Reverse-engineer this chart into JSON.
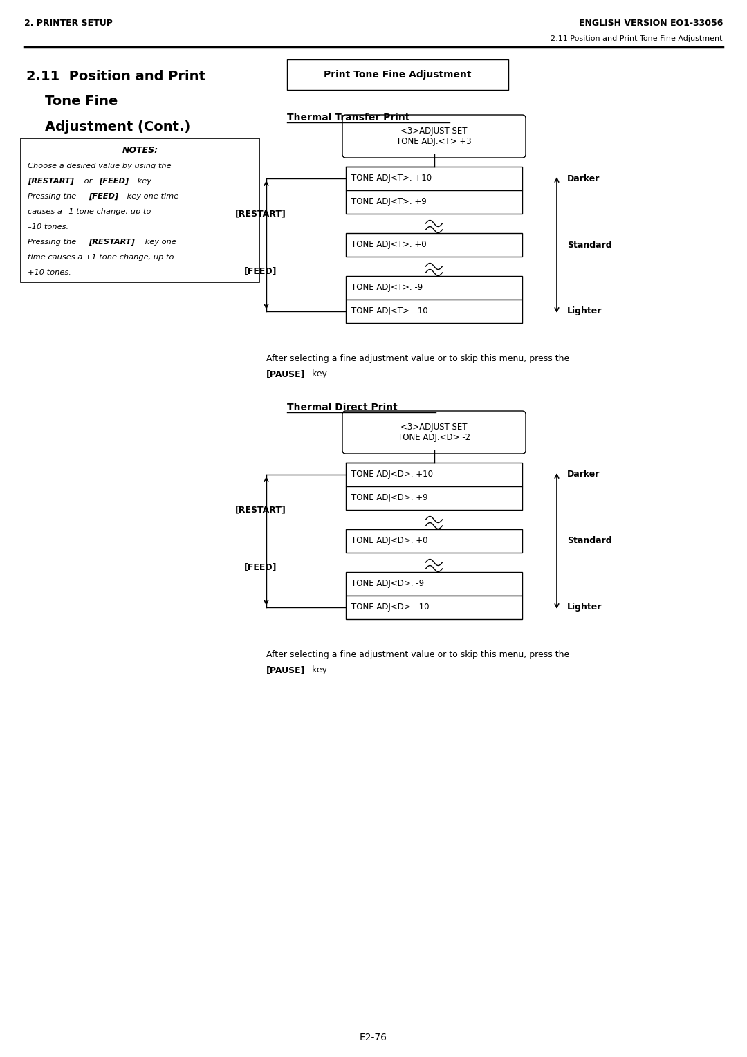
{
  "page_header_left": "2. PRINTER SETUP",
  "page_header_right": "ENGLISH VERSION EO1-33056",
  "page_subheader": "2.11 Position and Print Tone Fine Adjustment",
  "section_title_line1": "2.11  Position and Print",
  "section_title_line2": "Tone Fine",
  "section_title_line3": "Adjustment (Cont.)",
  "box_title": "Print Tone Fine Adjustment",
  "thermal_transfer_title": "Thermal Transfer Print",
  "thermal_direct_title": "Thermal Direct Print",
  "notes_title": "NOTES:",
  "tt_top_box": "<3>ADJUST SET\nTONE ADJ.<T> +3",
  "tt_boxes": [
    "TONE ADJ<T>. +10",
    "TONE ADJ<T>. +9",
    "TONE ADJ<T>. +0",
    "TONE ADJ<T>. -9",
    "TONE ADJ<T>. -10"
  ],
  "td_top_box": "<3>ADJUST SET\nTONE ADJ.<D> -2",
  "td_boxes": [
    "TONE ADJ<D>. +10",
    "TONE ADJ<D>. +9",
    "TONE ADJ<D>. +0",
    "TONE ADJ<D>. -9",
    "TONE ADJ<D>. -10"
  ],
  "restart_label": "[RESTART]",
  "feed_label": "[FEED]",
  "darker_label": "Darker",
  "standard_label": "Standard",
  "lighter_label": "Lighter",
  "after_text_line1": "After selecting a fine adjustment value or to skip this menu, press the",
  "after_text_bold": "[PAUSE]",
  "after_text_end": " key.",
  "page_number": "E2-76",
  "bg_color": "#ffffff",
  "text_color": "#000000"
}
